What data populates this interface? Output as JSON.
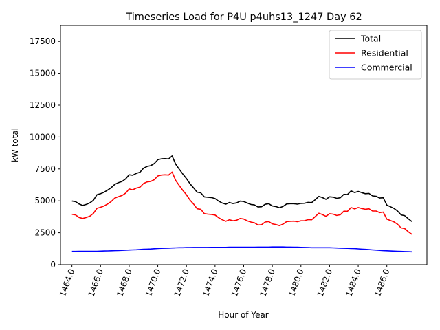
{
  "chart_data": {
    "type": "line",
    "title": "Timeseries Load for P4U p4uhs13_1247  Day 62",
    "xlabel": "Hour of Year",
    "ylabel": "kW total",
    "xlim": [
      1463.2,
      1488.8
    ],
    "ylim": [
      0,
      18750
    ],
    "xticks": [
      1464,
      1466,
      1468,
      1470,
      1472,
      1474,
      1476,
      1478,
      1480,
      1482,
      1484,
      1486
    ],
    "xtick_labels": [
      "1464.0",
      "1466.0",
      "1468.0",
      "1470.0",
      "1472.0",
      "1474.0",
      "1476.0",
      "1478.0",
      "1480.0",
      "1482.0",
      "1484.0",
      "1486.0"
    ],
    "yticks": [
      0,
      2500,
      5000,
      7500,
      10000,
      12500,
      15000,
      17500
    ],
    "ytick_labels": [
      "0",
      "2500",
      "5000",
      "7500",
      "10000",
      "12500",
      "15000",
      "17500"
    ],
    "legend_position": "top-right",
    "x": [
      1464.0,
      1464.25,
      1464.5,
      1464.75,
      1465.0,
      1465.25,
      1465.5,
      1465.75,
      1466.0,
      1466.25,
      1466.5,
      1466.75,
      1467.0,
      1467.25,
      1467.5,
      1467.75,
      1468.0,
      1468.25,
      1468.5,
      1468.75,
      1469.0,
      1469.25,
      1469.5,
      1469.75,
      1470.0,
      1470.25,
      1470.5,
      1470.75,
      1471.0,
      1471.25,
      1471.5,
      1471.75,
      1472.0,
      1472.25,
      1472.5,
      1472.75,
      1473.0,
      1473.25,
      1473.5,
      1473.75,
      1474.0,
      1474.25,
      1474.5,
      1474.75,
      1475.0,
      1475.25,
      1475.5,
      1475.75,
      1476.0,
      1476.25,
      1476.5,
      1476.75,
      1477.0,
      1477.25,
      1477.5,
      1477.75,
      1478.0,
      1478.25,
      1478.5,
      1478.75,
      1479.0,
      1479.25,
      1479.5,
      1479.75,
      1480.0,
      1480.25,
      1480.5,
      1480.75,
      1481.0,
      1481.25,
      1481.5,
      1481.75,
      1482.0,
      1482.25,
      1482.5,
      1482.75,
      1483.0,
      1483.25,
      1483.5,
      1483.75,
      1484.0,
      1484.25,
      1484.5,
      1484.75,
      1485.0,
      1485.25,
      1485.5,
      1485.75,
      1486.0,
      1486.25,
      1486.5,
      1486.75,
      1487.0,
      1487.25,
      1487.5,
      1487.75
    ],
    "series": [
      {
        "name": "Total",
        "color": "#000000",
        "values": [
          4990,
          4940,
          4750,
          4640,
          4720,
          4840,
          5050,
          5480,
          5560,
          5680,
          5850,
          6040,
          6300,
          6420,
          6520,
          6720,
          7040,
          7010,
          7150,
          7240,
          7560,
          7700,
          7760,
          7920,
          8220,
          8290,
          8310,
          8280,
          8520,
          7870,
          7480,
          7100,
          6750,
          6340,
          6020,
          5680,
          5630,
          5310,
          5280,
          5260,
          5180,
          4980,
          4830,
          4740,
          4870,
          4790,
          4840,
          4980,
          4950,
          4830,
          4720,
          4680,
          4520,
          4540,
          4730,
          4780,
          4600,
          4560,
          4460,
          4570,
          4760,
          4780,
          4780,
          4740,
          4800,
          4810,
          4880,
          4860,
          5090,
          5350,
          5260,
          5120,
          5320,
          5290,
          5200,
          5240,
          5510,
          5490,
          5780,
          5650,
          5740,
          5640,
          5560,
          5580,
          5390,
          5360,
          5220,
          5240,
          4670,
          4540,
          4410,
          4200,
          3900,
          3840,
          3600,
          3380
        ]
      },
      {
        "name": "Residential",
        "color": "#ff0000",
        "values": [
          3950,
          3900,
          3700,
          3620,
          3700,
          3800,
          4020,
          4420,
          4500,
          4600,
          4760,
          4950,
          5220,
          5330,
          5420,
          5600,
          5930,
          5870,
          6000,
          6070,
          6360,
          6480,
          6520,
          6660,
          6950,
          7020,
          7040,
          7020,
          7250,
          6600,
          6200,
          5820,
          5480,
          5060,
          4750,
          4380,
          4340,
          4000,
          3960,
          3940,
          3890,
          3680,
          3520,
          3400,
          3520,
          3440,
          3480,
          3620,
          3580,
          3440,
          3340,
          3280,
          3110,
          3130,
          3340,
          3380,
          3200,
          3140,
          3060,
          3180,
          3380,
          3400,
          3410,
          3370,
          3440,
          3450,
          3530,
          3520,
          3770,
          4030,
          3930,
          3790,
          3990,
          3960,
          3860,
          3910,
          4190,
          4180,
          4480,
          4370,
          4480,
          4400,
          4340,
          4380,
          4210,
          4200,
          4080,
          4120,
          3570,
          3460,
          3350,
          3170,
          2880,
          2830,
          2580,
          2380
        ]
      },
      {
        "name": "Commercial",
        "color": "#0000ff",
        "values": [
          1040,
          1040,
          1050,
          1050,
          1050,
          1050,
          1050,
          1050,
          1060,
          1070,
          1080,
          1090,
          1100,
          1110,
          1120,
          1130,
          1150,
          1160,
          1170,
          1190,
          1210,
          1220,
          1230,
          1250,
          1270,
          1280,
          1290,
          1300,
          1310,
          1320,
          1330,
          1330,
          1340,
          1340,
          1350,
          1350,
          1350,
          1350,
          1350,
          1360,
          1360,
          1360,
          1360,
          1360,
          1370,
          1370,
          1370,
          1370,
          1370,
          1370,
          1370,
          1370,
          1380,
          1380,
          1380,
          1380,
          1390,
          1390,
          1390,
          1390,
          1380,
          1380,
          1370,
          1370,
          1360,
          1350,
          1340,
          1330,
          1330,
          1330,
          1330,
          1330,
          1330,
          1320,
          1310,
          1300,
          1290,
          1280,
          1270,
          1260,
          1240,
          1220,
          1200,
          1180,
          1160,
          1140,
          1120,
          1100,
          1090,
          1070,
          1060,
          1050,
          1040,
          1030,
          1020,
          1010
        ]
      }
    ]
  }
}
